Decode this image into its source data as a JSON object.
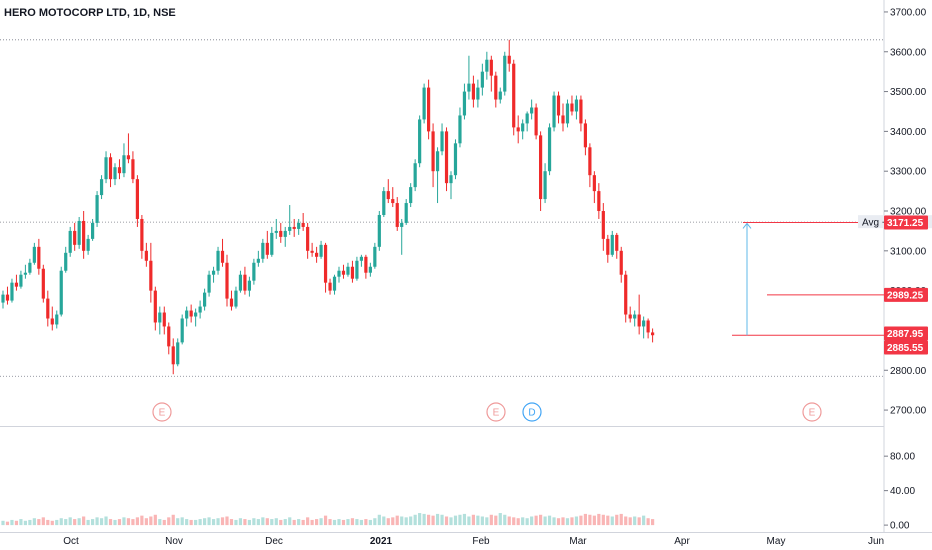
{
  "chart_data": {
    "type": "candlestick",
    "title": "HERO MOTOCORP LTD, 1D, NSE",
    "price_axis": {
      "ylim": [
        2660,
        3730
      ],
      "ticks": [
        2700,
        2800,
        2900,
        3000,
        3100,
        3200,
        3300,
        3400,
        3500,
        3600,
        3700
      ]
    },
    "price_tick_labels": [
      "2700.00",
      "2800.00",
      "2900.00",
      "3000.00",
      "3100.00",
      "3200.00",
      "3300.00",
      "3400.00",
      "3500.00",
      "3600.00",
      "3700.00"
    ],
    "volume_axis": {
      "ylim": [
        -8,
        115
      ],
      "ticks": [
        0,
        40,
        80
      ],
      "tick_labels": [
        "0.00",
        "40.00",
        "80.00"
      ]
    },
    "x_tick_labels": [
      "Oct",
      "Nov",
      "Dec",
      "2021",
      "Feb",
      "Mar",
      "Apr",
      "May",
      "Jun"
    ],
    "dotted_levels": [
      3630,
      3172,
      2785
    ],
    "arrow": {
      "from": 2887.95,
      "to": 3171.25
    },
    "price_tags": [
      {
        "label": "3171.25",
        "value": 3171.25
      },
      {
        "label": "2989.25",
        "value": 2989.25
      },
      {
        "label": "2887.95",
        "value": 2887.95
      },
      {
        "label": "2885.55",
        "value": 2885.55
      }
    ],
    "avg_label": {
      "text": "Avg − 3172.00",
      "value": 3172
    },
    "events": [
      {
        "type": "E",
        "color": "#ef9a9a"
      },
      {
        "type": "E",
        "color": "#ef9a9a"
      },
      {
        "type": "D",
        "color": "#42a5f5"
      },
      {
        "type": "E",
        "color": "#ef9a9a"
      }
    ],
    "up_color": "#26a69a",
    "down_color": "#ef2a2a",
    "candles": [
      [
        2970,
        3000,
        2955,
        2990
      ],
      [
        2990,
        3010,
        2965,
        2975
      ],
      [
        2975,
        3030,
        2970,
        3020
      ],
      [
        3020,
        3040,
        3000,
        3010
      ],
      [
        3010,
        3050,
        3005,
        3040
      ],
      [
        3040,
        3065,
        3030,
        3045
      ],
      [
        3045,
        3080,
        3040,
        3070
      ],
      [
        3070,
        3120,
        3065,
        3110
      ],
      [
        3110,
        3130,
        3040,
        3055
      ],
      [
        3055,
        3065,
        2970,
        2980
      ],
      [
        2980,
        3000,
        2910,
        2930
      ],
      [
        2930,
        2960,
        2900,
        2915
      ],
      [
        2915,
        2950,
        2905,
        2940
      ],
      [
        2940,
        3060,
        2935,
        3050
      ],
      [
        3050,
        3110,
        3045,
        3095
      ],
      [
        3095,
        3160,
        3085,
        3150
      ],
      [
        3150,
        3170,
        3100,
        3115
      ],
      [
        3115,
        3185,
        3105,
        3175
      ],
      [
        3175,
        3200,
        3080,
        3100
      ],
      [
        3100,
        3140,
        3090,
        3130
      ],
      [
        3130,
        3180,
        3125,
        3170
      ],
      [
        3170,
        3250,
        3160,
        3240
      ],
      [
        3240,
        3290,
        3230,
        3280
      ],
      [
        3280,
        3350,
        3270,
        3335
      ],
      [
        3335,
        3345,
        3260,
        3280
      ],
      [
        3280,
        3320,
        3265,
        3310
      ],
      [
        3310,
        3330,
        3280,
        3295
      ],
      [
        3295,
        3370,
        3285,
        3340
      ],
      [
        3340,
        3395,
        3320,
        3330
      ],
      [
        3330,
        3350,
        3270,
        3280
      ],
      [
        3280,
        3290,
        3160,
        3180
      ],
      [
        3180,
        3190,
        3080,
        3100
      ],
      [
        3100,
        3120,
        3060,
        3075
      ],
      [
        3075,
        3120,
        2970,
        3000
      ],
      [
        3000,
        3010,
        2900,
        2920
      ],
      [
        2920,
        2960,
        2890,
        2945
      ],
      [
        2945,
        2960,
        2890,
        2910
      ],
      [
        2910,
        2920,
        2840,
        2860
      ],
      [
        2860,
        2880,
        2790,
        2815
      ],
      [
        2815,
        2880,
        2810,
        2870
      ],
      [
        2870,
        2940,
        2865,
        2930
      ],
      [
        2930,
        2960,
        2910,
        2950
      ],
      [
        2950,
        2965,
        2920,
        2935
      ],
      [
        2935,
        2955,
        2910,
        2945
      ],
      [
        2945,
        2975,
        2930,
        2960
      ],
      [
        2960,
        3005,
        2950,
        2995
      ],
      [
        2995,
        3050,
        2985,
        3040
      ],
      [
        3040,
        3060,
        3020,
        3050
      ],
      [
        3050,
        3110,
        3040,
        3100
      ],
      [
        3100,
        3130,
        3060,
        3070
      ],
      [
        3070,
        3090,
        2960,
        2980
      ],
      [
        2980,
        3000,
        2950,
        2960
      ],
      [
        2960,
        3010,
        2955,
        3000
      ],
      [
        3000,
        3050,
        2995,
        3040
      ],
      [
        3040,
        3060,
        2990,
        3000
      ],
      [
        3000,
        3035,
        2985,
        3025
      ],
      [
        3025,
        3080,
        3015,
        3070
      ],
      [
        3070,
        3100,
        3060,
        3080
      ],
      [
        3080,
        3130,
        3070,
        3120
      ],
      [
        3120,
        3150,
        3080,
        3090
      ],
      [
        3090,
        3160,
        3085,
        3145
      ],
      [
        3145,
        3180,
        3130,
        3150
      ],
      [
        3150,
        3170,
        3120,
        3135
      ],
      [
        3135,
        3160,
        3110,
        3150
      ],
      [
        3150,
        3215,
        3140,
        3160
      ],
      [
        3160,
        3180,
        3135,
        3155
      ],
      [
        3155,
        3180,
        3140,
        3170
      ],
      [
        3170,
        3195,
        3150,
        3160
      ],
      [
        3160,
        3170,
        3080,
        3100
      ],
      [
        3100,
        3120,
        3085,
        3095
      ],
      [
        3095,
        3110,
        3070,
        3085
      ],
      [
        3085,
        3125,
        3080,
        3115
      ],
      [
        3115,
        3120,
        2995,
        3020
      ],
      [
        3020,
        3030,
        2990,
        3000
      ],
      [
        3000,
        3040,
        2990,
        3035
      ],
      [
        3035,
        3060,
        3020,
        3050
      ],
      [
        3050,
        3065,
        3030,
        3040
      ],
      [
        3040,
        3070,
        3035,
        3060
      ],
      [
        3060,
        3075,
        3020,
        3030
      ],
      [
        3030,
        3085,
        3025,
        3075
      ],
      [
        3075,
        3090,
        3060,
        3085
      ],
      [
        3085,
        3090,
        3030,
        3045
      ],
      [
        3045,
        3070,
        3035,
        3060
      ],
      [
        3060,
        3120,
        3055,
        3110
      ],
      [
        3110,
        3200,
        3100,
        3190
      ],
      [
        3190,
        3260,
        3185,
        3250
      ],
      [
        3250,
        3280,
        3220,
        3230
      ],
      [
        3230,
        3260,
        3210,
        3220
      ],
      [
        3220,
        3235,
        3150,
        3160
      ],
      [
        3160,
        3180,
        3090,
        3170
      ],
      [
        3170,
        3230,
        3165,
        3220
      ],
      [
        3220,
        3270,
        3210,
        3260
      ],
      [
        3260,
        3330,
        3250,
        3320
      ],
      [
        3320,
        3440,
        3310,
        3430
      ],
      [
        3430,
        3520,
        3420,
        3510
      ],
      [
        3510,
        3530,
        3380,
        3400
      ],
      [
        3400,
        3420,
        3260,
        3300
      ],
      [
        3300,
        3360,
        3220,
        3350
      ],
      [
        3350,
        3420,
        3340,
        3400
      ],
      [
        3400,
        3410,
        3250,
        3270
      ],
      [
        3270,
        3300,
        3230,
        3290
      ],
      [
        3290,
        3380,
        3280,
        3370
      ],
      [
        3370,
        3460,
        3360,
        3440
      ],
      [
        3440,
        3520,
        3430,
        3500
      ],
      [
        3500,
        3590,
        3480,
        3520
      ],
      [
        3520,
        3540,
        3460,
        3480
      ],
      [
        3480,
        3530,
        3460,
        3510
      ],
      [
        3510,
        3570,
        3490,
        3550
      ],
      [
        3550,
        3600,
        3530,
        3580
      ],
      [
        3580,
        3590,
        3500,
        3540
      ],
      [
        3540,
        3550,
        3460,
        3480
      ],
      [
        3480,
        3510,
        3470,
        3500
      ],
      [
        3500,
        3600,
        3490,
        3590
      ],
      [
        3590,
        3630,
        3550,
        3570
      ],
      [
        3570,
        3580,
        3390,
        3410
      ],
      [
        3410,
        3440,
        3370,
        3400
      ],
      [
        3400,
        3430,
        3380,
        3420
      ],
      [
        3420,
        3450,
        3400,
        3445
      ],
      [
        3445,
        3480,
        3430,
        3460
      ],
      [
        3460,
        3470,
        3380,
        3390
      ],
      [
        3390,
        3400,
        3200,
        3230
      ],
      [
        3230,
        3320,
        3220,
        3300
      ],
      [
        3300,
        3420,
        3290,
        3410
      ],
      [
        3410,
        3500,
        3400,
        3490
      ],
      [
        3490,
        3500,
        3420,
        3440
      ],
      [
        3440,
        3470,
        3400,
        3420
      ],
      [
        3420,
        3480,
        3410,
        3470
      ],
      [
        3470,
        3490,
        3440,
        3450
      ],
      [
        3450,
        3490,
        3430,
        3480
      ],
      [
        3480,
        3490,
        3400,
        3420
      ],
      [
        3420,
        3430,
        3340,
        3360
      ],
      [
        3360,
        3370,
        3260,
        3290
      ],
      [
        3290,
        3300,
        3220,
        3250
      ],
      [
        3250,
        3270,
        3180,
        3200
      ],
      [
        3200,
        3220,
        3100,
        3130
      ],
      [
        3130,
        3140,
        3070,
        3090
      ],
      [
        3090,
        3150,
        3085,
        3140
      ],
      [
        3140,
        3145,
        3080,
        3100
      ],
      [
        3100,
        3110,
        3020,
        3040
      ],
      [
        3040,
        3050,
        2920,
        2940
      ],
      [
        2940,
        2960,
        2920,
        2930
      ],
      [
        2930,
        2950,
        2910,
        2940
      ],
      [
        2940,
        2990,
        2890,
        2910
      ],
      [
        2910,
        2935,
        2880,
        2925
      ],
      [
        2925,
        2930,
        2880,
        2895
      ],
      [
        2895,
        2905,
        2870,
        2888
      ]
    ],
    "volumes": [
      5,
      4,
      6,
      5,
      7,
      5,
      6,
      8,
      7,
      9,
      6,
      5,
      6,
      8,
      7,
      9,
      7,
      8,
      10,
      6,
      7,
      9,
      8,
      10,
      7,
      6,
      7,
      9,
      8,
      7,
      9,
      11,
      8,
      10,
      12,
      7,
      6,
      9,
      12,
      8,
      9,
      7,
      6,
      6,
      7,
      8,
      9,
      7,
      8,
      9,
      10,
      7,
      6,
      8,
      7,
      6,
      8,
      7,
      9,
      8,
      7,
      8,
      6,
      7,
      9,
      6,
      7,
      6,
      9,
      6,
      7,
      8,
      11,
      7,
      6,
      7,
      6,
      7,
      8,
      7,
      6,
      7,
      6,
      8,
      12,
      10,
      8,
      9,
      11,
      10,
      9,
      10,
      12,
      14,
      13,
      12,
      11,
      13,
      12,
      10,
      9,
      11,
      12,
      13,
      10,
      12,
      11,
      10,
      9,
      12,
      11,
      14,
      12,
      10,
      9,
      8,
      9,
      8,
      10,
      11,
      12,
      10,
      11,
      9,
      8,
      9,
      8,
      9,
      10,
      11,
      13,
      12,
      11,
      13,
      12,
      11,
      10,
      12,
      13,
      10,
      9,
      10,
      9,
      11,
      8,
      7
    ]
  }
}
